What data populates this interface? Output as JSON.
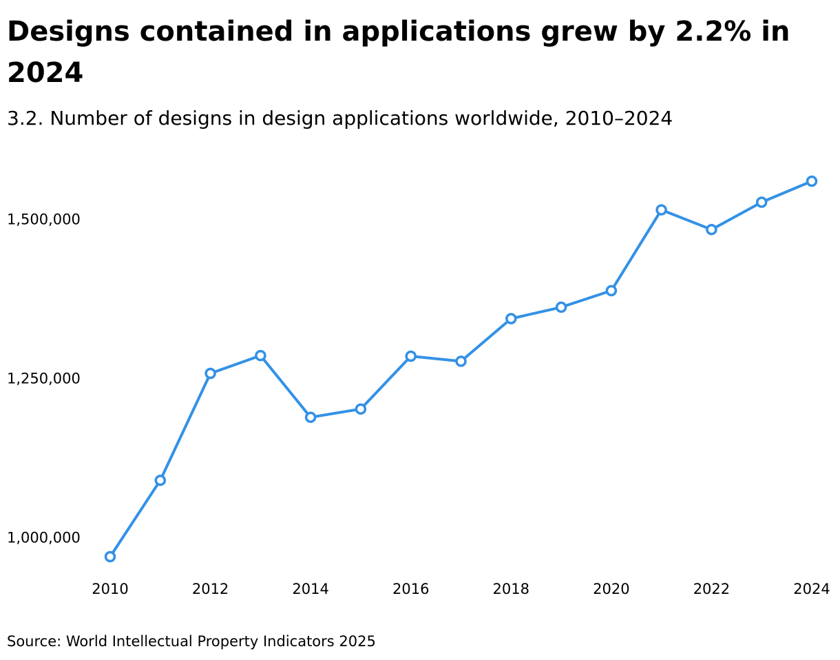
{
  "title": "Designs contained in applications grew by 2.2% in 2024",
  "subtitle": "3.2. Number of designs in design applications worldwide, 2010–2024",
  "source": "Source: World Intellectual Property Indicators 2025",
  "colors": {
    "line": "#3391e6",
    "marker_fill": "#ffffff"
  },
  "chart_data": {
    "type": "line",
    "title": "Designs contained in applications grew by 2.2% in 2024",
    "subtitle": "3.2. Number of designs in design applications worldwide, 2010–2024",
    "xlabel": "",
    "ylabel": "",
    "grid": false,
    "legend": "none",
    "x": [
      2010,
      2011,
      2012,
      2013,
      2014,
      2015,
      2016,
      2017,
      2018,
      2019,
      2020,
      2021,
      2022,
      2023,
      2024
    ],
    "xticks": [
      "2010",
      "2012",
      "2014",
      "2016",
      "2018",
      "2020",
      "2022",
      "2024"
    ],
    "yticks": [
      1000000,
      1250000,
      1500000
    ],
    "ytick_labels": [
      "1,000,000",
      "1,250,000",
      "1,500,000"
    ],
    "xlim": [
      2010,
      2024
    ],
    "ylim": [
      970000,
      1560000
    ],
    "series": [
      {
        "values": [
          970000,
          1090000,
          1258000,
          1286000,
          1189000,
          1202000,
          1285000,
          1277000,
          1344000,
          1362000,
          1388000,
          1515000,
          1484000,
          1527000,
          1560000
        ]
      }
    ]
  }
}
